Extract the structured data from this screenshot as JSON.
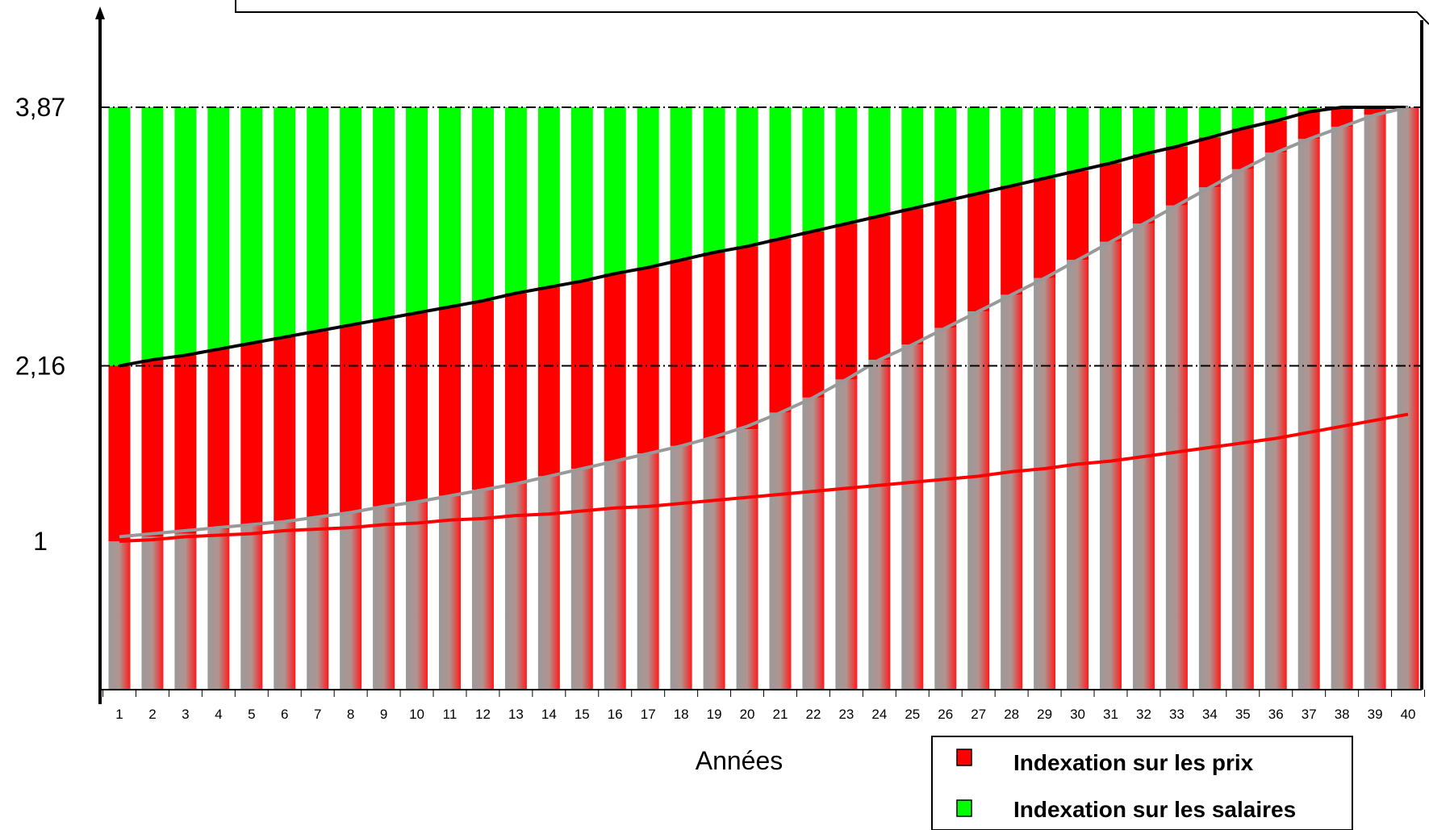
{
  "chart_data": {
    "type": "bar",
    "xlabel": "Années",
    "ylabel": "",
    "y_tick_labels": [
      {
        "value": 1,
        "label": "1"
      },
      {
        "value": 2.16,
        "label": "2,16"
      },
      {
        "value": 3.87,
        "label": "3,87"
      }
    ],
    "ylim": [
      0,
      4.55
    ],
    "reference_lines": [
      2.16,
      3.87
    ],
    "categories": [
      1,
      2,
      3,
      4,
      5,
      6,
      7,
      8,
      9,
      10,
      11,
      12,
      13,
      14,
      15,
      16,
      17,
      18,
      19,
      20,
      21,
      22,
      23,
      24,
      25,
      26,
      27,
      28,
      29,
      30,
      31,
      32,
      33,
      34,
      35,
      36,
      37,
      38,
      39,
      40
    ],
    "bar_top": 3.87,
    "series": [
      {
        "name": "Indexation sur les salaires",
        "color": "#00ff00",
        "values": [
          3.87,
          3.87,
          3.87,
          3.87,
          3.87,
          3.87,
          3.87,
          3.87,
          3.87,
          3.87,
          3.87,
          3.87,
          3.87,
          3.87,
          3.87,
          3.87,
          3.87,
          3.87,
          3.87,
          3.87,
          3.87,
          3.87,
          3.87,
          3.87,
          3.87,
          3.87,
          3.87,
          3.87,
          3.87,
          3.87,
          3.87,
          3.87,
          3.87,
          3.87,
          3.87,
          3.87,
          3.87,
          3.87,
          3.87,
          3.87
        ]
      },
      {
        "name": "Indexation sur les prix",
        "color": "#ff0000",
        "values": [
          2.16,
          2.2,
          2.23,
          2.27,
          2.31,
          2.35,
          2.39,
          2.43,
          2.47,
          2.51,
          2.55,
          2.59,
          2.64,
          2.68,
          2.72,
          2.77,
          2.81,
          2.86,
          2.91,
          2.95,
          3.0,
          3.05,
          3.1,
          3.15,
          3.2,
          3.25,
          3.3,
          3.35,
          3.4,
          3.45,
          3.5,
          3.56,
          3.61,
          3.67,
          3.73,
          3.78,
          3.84,
          3.87,
          3.87,
          3.87
        ]
      },
      {
        "color": "#999999",
        "values": [
          1.0,
          1.03,
          1.05,
          1.08,
          1.1,
          1.13,
          1.16,
          1.19,
          1.23,
          1.26,
          1.3,
          1.34,
          1.38,
          1.43,
          1.48,
          1.53,
          1.58,
          1.63,
          1.68,
          1.74,
          1.85,
          1.95,
          2.07,
          2.2,
          2.3,
          2.41,
          2.52,
          2.63,
          2.74,
          2.86,
          2.98,
          3.1,
          3.22,
          3.34,
          3.46,
          3.57,
          3.66,
          3.74,
          3.82,
          3.87
        ]
      }
    ],
    "lines": [
      {
        "color": "#000000",
        "values": [
          2.16,
          2.2,
          2.23,
          2.27,
          2.31,
          2.35,
          2.39,
          2.43,
          2.47,
          2.51,
          2.55,
          2.59,
          2.64,
          2.68,
          2.72,
          2.77,
          2.81,
          2.86,
          2.91,
          2.95,
          3.0,
          3.05,
          3.1,
          3.15,
          3.2,
          3.25,
          3.3,
          3.35,
          3.4,
          3.45,
          3.5,
          3.56,
          3.61,
          3.67,
          3.73,
          3.78,
          3.84,
          3.87,
          3.87,
          3.87
        ]
      },
      {
        "color": "#999999",
        "values": [
          1.03,
          1.05,
          1.07,
          1.09,
          1.11,
          1.13,
          1.16,
          1.19,
          1.23,
          1.26,
          1.3,
          1.34,
          1.38,
          1.43,
          1.48,
          1.53,
          1.58,
          1.63,
          1.69,
          1.76,
          1.85,
          1.95,
          2.07,
          2.2,
          2.3,
          2.41,
          2.52,
          2.63,
          2.74,
          2.86,
          2.98,
          3.1,
          3.22,
          3.34,
          3.46,
          3.57,
          3.66,
          3.74,
          3.82,
          3.87
        ]
      },
      {
        "color": "#ff0000",
        "values": [
          1.0,
          1.01,
          1.03,
          1.04,
          1.05,
          1.07,
          1.08,
          1.09,
          1.11,
          1.12,
          1.14,
          1.15,
          1.17,
          1.18,
          1.2,
          1.22,
          1.23,
          1.25,
          1.27,
          1.29,
          1.31,
          1.33,
          1.35,
          1.37,
          1.39,
          1.41,
          1.43,
          1.46,
          1.48,
          1.51,
          1.53,
          1.56,
          1.59,
          1.62,
          1.65,
          1.68,
          1.72,
          1.76,
          1.8,
          1.84
        ]
      }
    ],
    "legend": {
      "position": "bottom-right",
      "entries": [
        {
          "label": "Indexation sur les prix",
          "color": "#ff0000"
        },
        {
          "label": "Indexation sur les salaires",
          "color": "#00ff00"
        }
      ]
    }
  }
}
